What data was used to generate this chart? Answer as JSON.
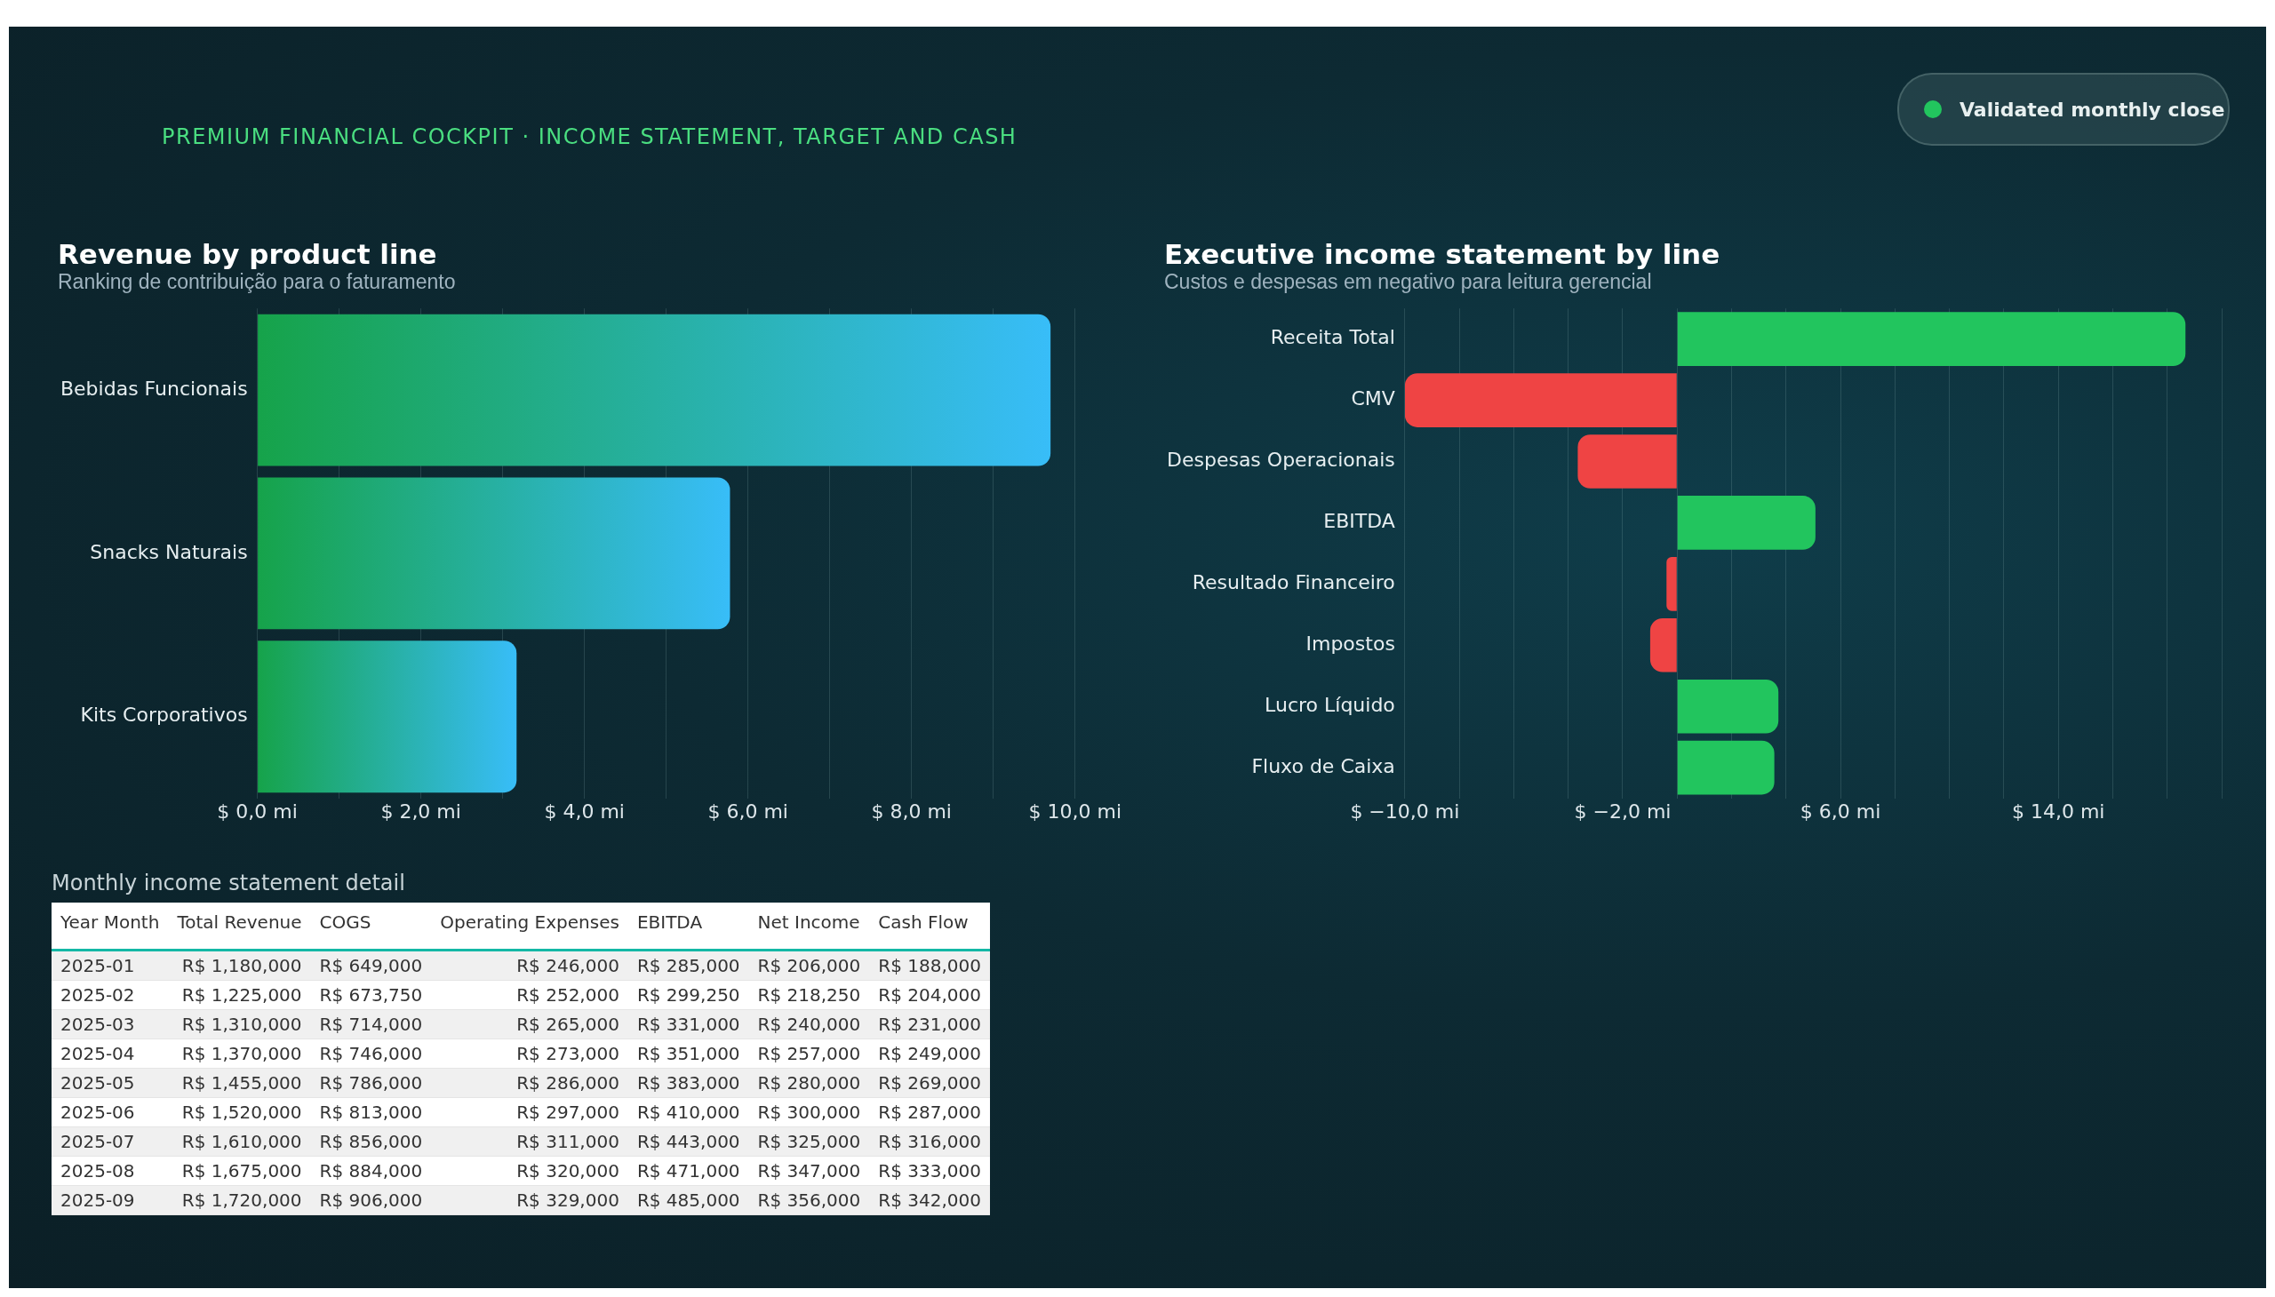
{
  "chart_data": [
    {
      "type": "other",
      "title": "PREMIUM FINANCIAL COCKPIT · INCOME STATEMENT, TARGET AND CASH",
      "annotations": [
        "Validated monthly close"
      ]
    },
    {
      "type": "bar",
      "orientation": "horizontal",
      "title": "Revenue by product line",
      "subtitle": "Ranking de contribuição para o faturamento",
      "categories": [
        "Bebidas Funcionais",
        "Snacks Naturais",
        "Kits Corporativos"
      ],
      "values": [
        9.7,
        5.78,
        3.17
      ],
      "color": "#38bdf8",
      "xlim": [
        0,
        10
      ],
      "xticks": [
        {
          "value": 0,
          "label": "$ 0,0 mi"
        },
        {
          "value": 1,
          "label": null
        },
        {
          "value": 2,
          "label": "$ 2,0 mi"
        },
        {
          "value": 3,
          "label": null
        },
        {
          "value": 4,
          "label": "$ 4,0 mi"
        },
        {
          "value": 5,
          "label": null
        },
        {
          "value": 6,
          "label": "$ 6,0 mi"
        },
        {
          "value": 7,
          "label": null
        },
        {
          "value": 8,
          "label": "$ 8,0 mi"
        },
        {
          "value": 9,
          "label": null
        },
        {
          "value": 10,
          "label": "$ 10,0 mi"
        }
      ],
      "grid": "x"
    },
    {
      "type": "bar",
      "orientation": "horizontal",
      "title": "Executive income statement by line",
      "subtitle": "Custos e despesas em negativo para leitura gerencial",
      "categories": [
        "Receita Total",
        "CMV",
        "Despesas Operacionais",
        "EBITDA",
        "Resultado Financeiro",
        "Impostos",
        "Lucro Líquido",
        "Fluxo de Caixa"
      ],
      "values": [
        18.67,
        -10.0,
        -3.65,
        5.08,
        -0.39,
        -0.99,
        3.72,
        3.57
      ],
      "colors": [
        "#22c55e",
        "#ef4444",
        "#ef4444",
        "#22c55e",
        "#ef4444",
        "#ef4444",
        "#22c55e",
        "#22c55e"
      ],
      "xlim": [
        -10,
        20
      ],
      "xticks": [
        {
          "value": -10,
          "label": "$ −10,0 mi"
        },
        {
          "value": -8,
          "label": null
        },
        {
          "value": -6,
          "label": null
        },
        {
          "value": -4,
          "label": null
        },
        {
          "value": -2,
          "label": "$ −2,0 mi"
        },
        {
          "value": 0,
          "label": null
        },
        {
          "value": 2,
          "label": null
        },
        {
          "value": 4,
          "label": null
        },
        {
          "value": 6,
          "label": "$ 6,0 mi"
        },
        {
          "value": 8,
          "label": null
        },
        {
          "value": 10,
          "label": null
        },
        {
          "value": 12,
          "label": null
        },
        {
          "value": 14,
          "label": "$ 14,0 mi"
        },
        {
          "value": 16,
          "label": null
        },
        {
          "value": 18,
          "label": null
        },
        {
          "value": 20,
          "label": null
        }
      ],
      "grid": "x"
    },
    {
      "type": "other",
      "title": "Monthly income statement detail",
      "categories": [
        "Year Month",
        "Total Revenue",
        "COGS",
        "Operating Expenses",
        "EBITDA",
        "Net Income",
        "Cash Flow"
      ],
      "annotations": [
        "2025-01",
        "R$ 1,180,000",
        "R$ 649,000",
        "R$ 246,000",
        "R$ 285,000",
        "R$ 206,000",
        "R$ 188,000",
        "2025-02",
        "R$ 1,225,000",
        "R$ 673,750",
        "R$ 252,000",
        "R$ 299,250",
        "R$ 218,250",
        "R$ 204,000",
        "2025-03",
        "R$ 1,310,000",
        "R$ 714,000",
        "R$ 265,000",
        "R$ 331,000",
        "R$ 240,000",
        "R$ 231,000",
        "2025-04",
        "R$ 1,370,000",
        "R$ 746,000",
        "R$ 273,000",
        "R$ 351,000",
        "R$ 257,000",
        "R$ 249,000",
        "2025-05",
        "R$ 1,455,000",
        "R$ 786,000",
        "R$ 286,000",
        "R$ 383,000",
        "R$ 280,000",
        "R$ 269,000",
        "2025-06",
        "R$ 1,520,000",
        "R$ 813,000",
        "R$ 297,000",
        "R$ 410,000",
        "R$ 300,000",
        "R$ 287,000",
        "2025-07",
        "R$ 1,610,000",
        "R$ 856,000",
        "R$ 311,000",
        "R$ 443,000",
        "R$ 325,000",
        "R$ 316,000",
        "2025-08",
        "R$ 1,675,000",
        "R$ 884,000",
        "R$ 320,000",
        "R$ 471,000",
        "R$ 347,000",
        "R$ 333,000",
        "2025-09",
        "R$ 1,720,000",
        "R$ 906,000",
        "R$ 329,000",
        "R$ 485,000",
        "R$ 356,000",
        "R$ 342,000"
      ]
    }
  ]
}
